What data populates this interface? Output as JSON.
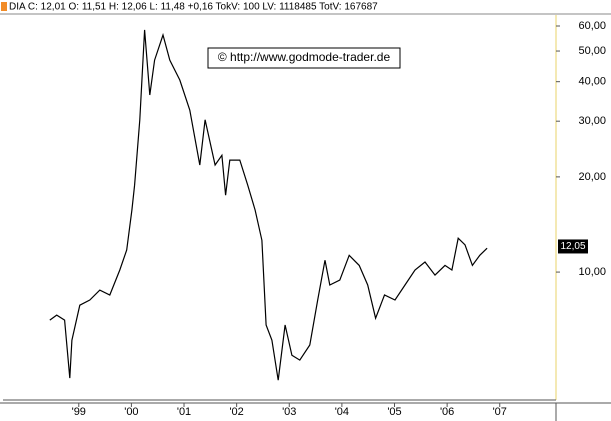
{
  "header": "DIA C: 12,01 O: 11,51 H: 12,06 L: 11,48 +0,16 TokV: 100 LV: 1118485 TotV: 167687",
  "chart_data": {
    "type": "line",
    "log_scale": true,
    "grid": false,
    "color": "#000000",
    "watermark": "© http://www.godmode-trader.de",
    "x": [
      1998.45,
      1998.58,
      1998.73,
      1998.83,
      1998.87,
      1999.02,
      1999.21,
      1999.4,
      1999.59,
      1999.78,
      1999.91,
      2000.01,
      2000.06,
      2000.16,
      2000.25,
      2000.35,
      2000.44,
      2000.6,
      2000.73,
      2000.92,
      2001.11,
      2001.3,
      2001.4,
      2001.59,
      2001.72,
      2001.79,
      2001.87,
      2002.06,
      2002.21,
      2002.35,
      2002.48,
      2002.56,
      2002.67,
      2002.79,
      2002.92,
      2003.05,
      2003.2,
      2003.39,
      2003.54,
      2003.68,
      2003.77,
      2003.96,
      2004.14,
      2004.33,
      2004.49,
      2004.64,
      2004.81,
      2005.01,
      2005.2,
      2005.39,
      2005.58,
      2005.77,
      2005.96,
      2006.09,
      2006.21,
      2006.34,
      2006.48,
      2006.62,
      2006.76
    ],
    "values": [
      7.05,
      7.31,
      7.05,
      4.62,
      6.09,
      7.86,
      8.16,
      8.77,
      8.46,
      10.15,
      11.74,
      15.71,
      18.84,
      30.3,
      58.3,
      36.3,
      46.8,
      56.2,
      46.8,
      40.5,
      32.5,
      21.8,
      30.3,
      21.8,
      23.4,
      17.5,
      22.6,
      22.6,
      18.84,
      15.71,
      12.6,
      6.8,
      6.09,
      4.55,
      6.8,
      5.46,
      5.27,
      5.88,
      8.16,
      10.9,
      9.1,
      9.43,
      11.3,
      10.5,
      9.1,
      7.15,
      8.46,
      8.16,
      9.1,
      10.15,
      10.76,
      9.78,
      10.5,
      10.15,
      12.8,
      12.2,
      10.5,
      11.3,
      11.9
    ],
    "xlim": [
      1997.56,
      2008.05
    ],
    "xticks": [
      {
        "value": 1999,
        "label": "'99"
      },
      {
        "value": 2000,
        "label": "'00"
      },
      {
        "value": 2001,
        "label": "'01"
      },
      {
        "value": 2002,
        "label": "'02"
      },
      {
        "value": 2003,
        "label": "'03"
      },
      {
        "value": 2004,
        "label": "'04"
      },
      {
        "value": 2005,
        "label": "'05"
      },
      {
        "value": 2006,
        "label": "'06"
      },
      {
        "value": 2007,
        "label": "'07"
      }
    ],
    "ylim": [
      3.94,
      65
    ],
    "yticks": [
      {
        "value": 10,
        "label": "10,00"
      },
      {
        "value": 20,
        "label": "20,00"
      },
      {
        "value": 30,
        "label": "30,00"
      },
      {
        "value": 40,
        "label": "40,00"
      },
      {
        "value": 50,
        "label": "50,00"
      },
      {
        "value": 60,
        "label": "60,00"
      }
    ],
    "annotations": [
      {
        "value": 12.05,
        "label": "12,05"
      }
    ]
  }
}
